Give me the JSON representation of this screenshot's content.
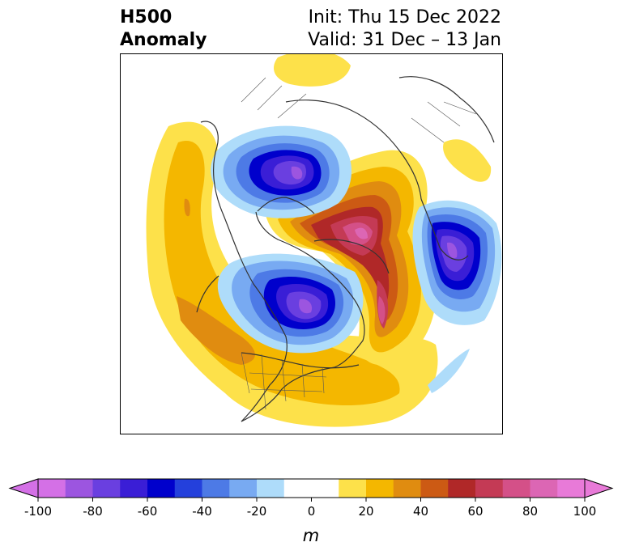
{
  "title": {
    "left_line1": "H500",
    "left_line2": "Anomaly",
    "right_line1": "Init: Thu 15 Dec 2022",
    "right_line2": "Valid: 31 Dec – 13 Jan"
  },
  "colorbar": {
    "ticks": [
      "-100",
      "-80",
      "-60",
      "-40",
      "-20",
      "0",
      "20",
      "40",
      "60",
      "80",
      "100"
    ],
    "unit": "m",
    "colors": [
      "#d470e6",
      "#9c55e0",
      "#6a3fe0",
      "#3a1ed6",
      "#0000cc",
      "#2440dc",
      "#4d7ae6",
      "#78aaf2",
      "#aedcfa",
      "#ffffff",
      "#ffffff",
      "#fde14a",
      "#f4b700",
      "#e08c10",
      "#cc5a14",
      "#b02828",
      "#c43a55",
      "#d45088",
      "#dc66b4",
      "#e87ad8"
    ]
  }
}
